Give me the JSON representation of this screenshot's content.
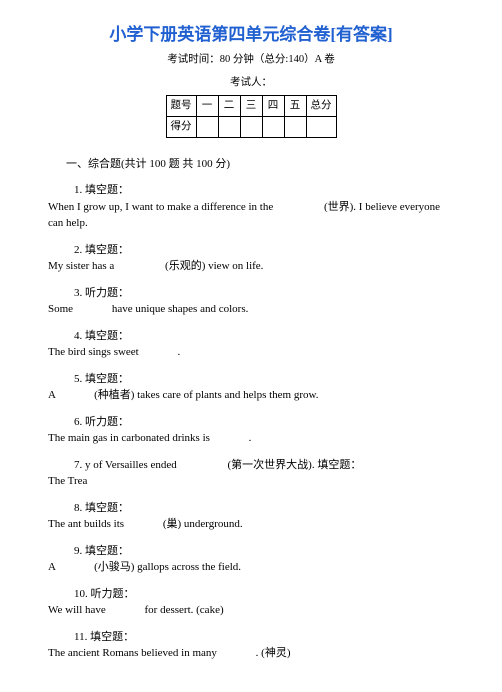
{
  "title": "小学下册英语第四单元综合卷[有答案]",
  "subtitle": "考试时间：80 分钟（总分:140）A 卷",
  "examinee": "考试人：",
  "table_headers": [
    "题号",
    "一",
    "二",
    "三",
    "四",
    "五",
    "总分"
  ],
  "table_row_label": "得分",
  "section_title": "一、综合题(共计 100 题 共 100 分)",
  "questions": [
    {
      "num": "1. 填空题：",
      "body_pre": "When I grow up, I want to make a difference in the ",
      "body_cn": "(世界). ",
      "body_post": "I believe everyone can help."
    },
    {
      "num": "2. 填空题：",
      "body_pre": "My sister has a ",
      "body_cn": "(乐观的) ",
      "body_post": "view on life."
    },
    {
      "num": "3. 听力题：",
      "body_pre": "Some ",
      "body_cn": "",
      "body_post": "have unique shapes and colors."
    },
    {
      "num": "4. 填空题：",
      "body_pre": "The bird sings sweet ",
      "body_cn": "",
      "body_post": "."
    },
    {
      "num": "5. 填空题：",
      "body_pre": "A ",
      "body_cn": "(种植者) ",
      "body_post": "takes care of plants and helps them grow."
    },
    {
      "num": "6. 听力题：",
      "body_pre": "The main gas in carbonated drinks is ",
      "body_cn": "",
      "body_post": "."
    },
    {
      "num": "7. y of Versailles ended ",
      "body_pre": "The Trea",
      "body_cn": "(第一次世界大战). 填空题：",
      "body_post": ""
    },
    {
      "num": "8. 填空题：",
      "body_pre": "The ant builds its ",
      "body_cn": "(巢) ",
      "body_post": "underground."
    },
    {
      "num": "9. 填空题：",
      "body_pre": "A ",
      "body_cn": "(小骏马) ",
      "body_post": "gallops across the field."
    },
    {
      "num": "10. 听力题：",
      "body_pre": "We will have ",
      "body_cn": "",
      "body_post": "for dessert. (cake)"
    },
    {
      "num": "11. 填空题：",
      "body_pre": "The ancient Romans believed in many ",
      "body_cn": ". (神灵)",
      "body_post": ""
    }
  ]
}
